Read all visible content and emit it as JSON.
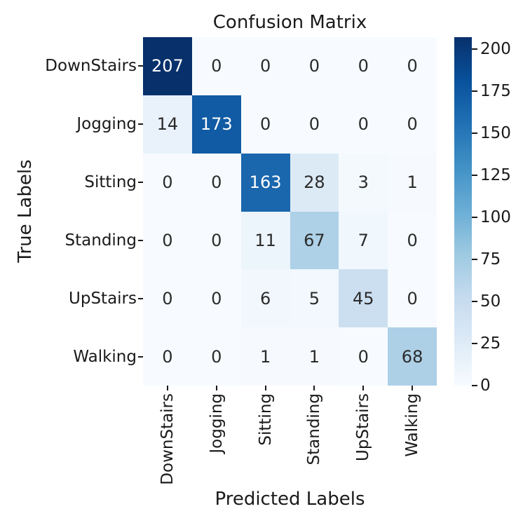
{
  "chart_data": {
    "type": "heatmap",
    "title": "Confusion Matrix",
    "xlabel": "Predicted Labels",
    "ylabel": "True Labels",
    "x_categories": [
      "DownStairs",
      "Jogging",
      "Sitting",
      "Standing",
      "UpStairs",
      "Walking"
    ],
    "y_categories": [
      "DownStairs",
      "Jogging",
      "Sitting",
      "Standing",
      "UpStairs",
      "Walking"
    ],
    "matrix": [
      [
        207,
        0,
        0,
        0,
        0,
        0
      ],
      [
        14,
        173,
        0,
        0,
        0,
        0
      ],
      [
        0,
        0,
        163,
        28,
        3,
        1
      ],
      [
        0,
        0,
        11,
        67,
        7,
        0
      ],
      [
        0,
        0,
        6,
        5,
        45,
        0
      ],
      [
        0,
        0,
        1,
        1,
        0,
        68
      ]
    ],
    "annotations": true,
    "colormap": "Blues",
    "vmin": 0,
    "vmax": 207,
    "colorbar_ticks": [
      0,
      25,
      50,
      75,
      100,
      125,
      150,
      175,
      200
    ],
    "colorbar_position": "right",
    "grid": false
  },
  "colors": {
    "background": "#ffffff",
    "text": "#1a1a1a",
    "tick": "#1a1a1a",
    "annot_dark": "#2b2b2b",
    "annot_light": "#ffffff",
    "blues_anchors": [
      "#f7fbff",
      "#deebf7",
      "#c6dbef",
      "#9ecae1",
      "#6baed6",
      "#4292c6",
      "#2171b5",
      "#08519c",
      "#08306b"
    ]
  }
}
